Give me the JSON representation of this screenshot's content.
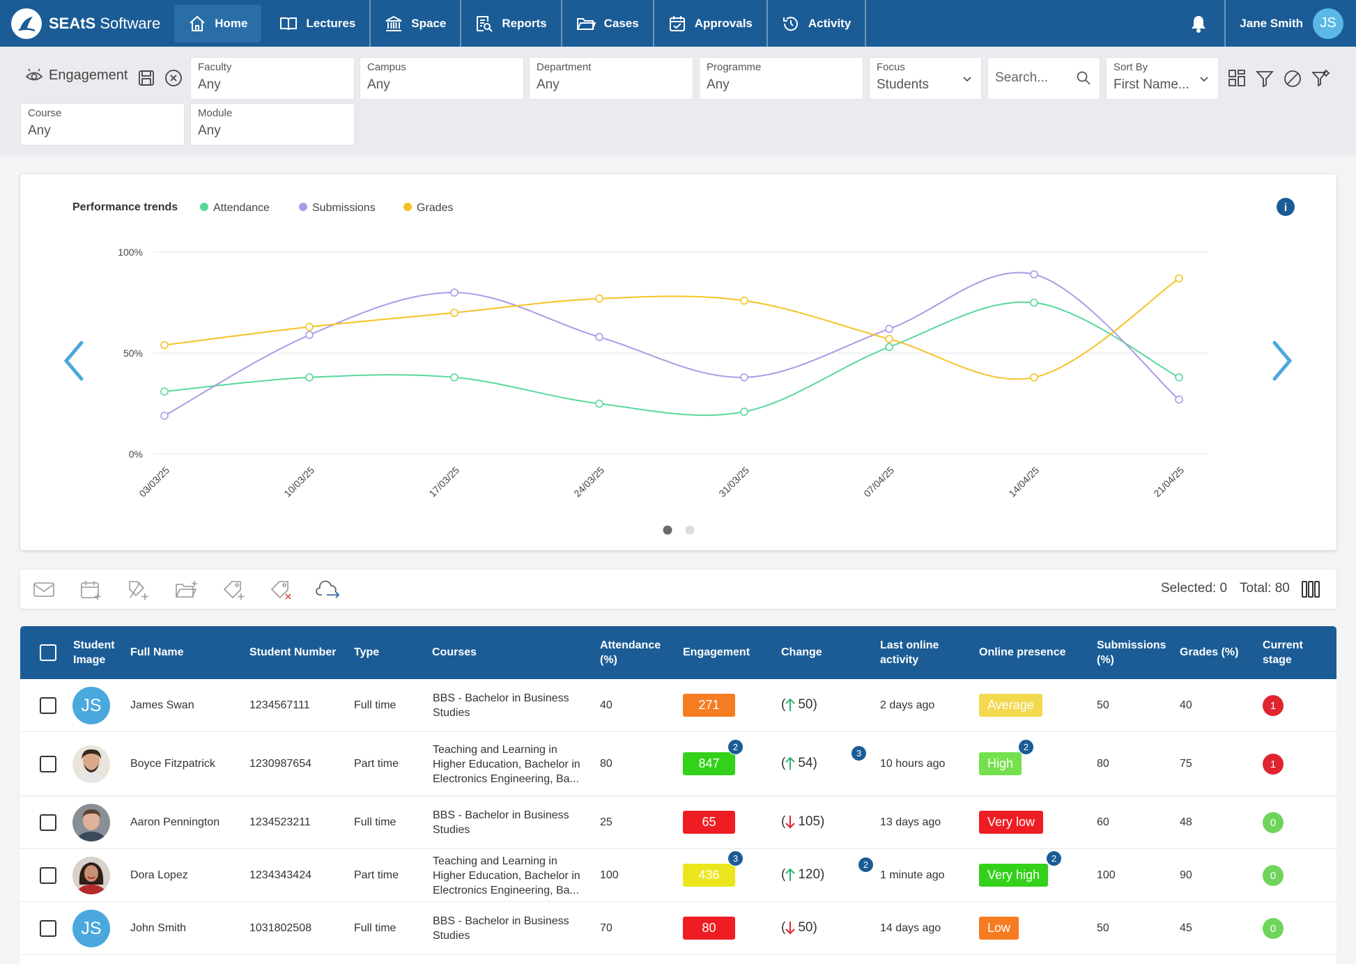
{
  "nav": {
    "brand_strong": "SEAtS",
    "brand_rest": " Software",
    "tabs": [
      {
        "label": "Home"
      },
      {
        "label": "Lectures"
      },
      {
        "label": "Space"
      },
      {
        "label": "Reports"
      },
      {
        "label": "Cases"
      },
      {
        "label": "Approvals"
      },
      {
        "label": "Activity"
      }
    ],
    "user_name": "Jane Smith",
    "user_initials": "JS"
  },
  "filters": {
    "view_label": "Engagement",
    "faculty": {
      "label": "Faculty",
      "value": "Any"
    },
    "campus": {
      "label": "Campus",
      "value": "Any"
    },
    "department": {
      "label": "Department",
      "value": "Any"
    },
    "programme": {
      "label": "Programme",
      "value": "Any"
    },
    "focus": {
      "label": "Focus",
      "value": "Students"
    },
    "search": {
      "placeholder": "Search..."
    },
    "sort": {
      "label": "Sort By",
      "value": "First Name..."
    },
    "course": {
      "label": "Course",
      "value": "Any"
    },
    "module": {
      "label": "Module",
      "value": "Any"
    }
  },
  "chart_data": {
    "type": "line",
    "title": "Performance trends",
    "x": [
      "03/03/25",
      "10/03/25",
      "17/03/25",
      "24/03/25",
      "31/03/25",
      "07/04/25",
      "14/04/25",
      "21/04/25"
    ],
    "ylim": [
      0,
      100
    ],
    "yticks": [
      "0%",
      "50%",
      "100%"
    ],
    "grid": true,
    "legend": "top-left",
    "series": [
      {
        "name": "Attendance",
        "color": "#58d89b",
        "values": [
          31,
          38,
          38,
          25,
          21,
          53,
          75,
          38
        ]
      },
      {
        "name": "Submissions",
        "color": "#a99be6",
        "values": [
          19,
          59,
          80,
          58,
          38,
          62,
          89,
          27
        ]
      },
      {
        "name": "Grades",
        "color": "#f5c226",
        "values": [
          54,
          63,
          70,
          77,
          76,
          57,
          38,
          87
        ]
      }
    ]
  },
  "actions": {
    "selected": "Selected: 0",
    "total": "Total: 80"
  },
  "table": {
    "headers": {
      "image": [
        "Student",
        "Image"
      ],
      "name": "Full Name",
      "number": "Student Number",
      "type": "Type",
      "courses": "Courses",
      "attendance": [
        "Attendance",
        "(%)"
      ],
      "engagement": "Engagement",
      "change": "Change",
      "last": [
        "Last online",
        "activity"
      ],
      "presence": "Online presence",
      "submissions": [
        "Submissions",
        "(%)"
      ],
      "grades": "Grades (%)",
      "stage": [
        "Current",
        "stage"
      ]
    },
    "rows": [
      {
        "initials": "JS",
        "name": "James Swan",
        "number": "1234567111",
        "type": "Full time",
        "courses": "BBS - Bachelor in Business Studies",
        "attendance": "40",
        "engagement": "271",
        "eng_color": "#f57c21",
        "eng_badge": "",
        "change_dir": "up",
        "change": "50",
        "change_badge": "",
        "last": "2 days ago",
        "presence": "Average",
        "pres_color": "#f2d94e",
        "pres_badge": "",
        "submissions": "50",
        "grades": "40",
        "stage": "1",
        "stage_color": "#e0242f"
      },
      {
        "initials": "",
        "name": "Boyce Fitzpatrick",
        "number": "1230987654",
        "type": "Part time",
        "courses": "Teaching and Learning in Higher Education, Bachelor in Electronics Engineering, Ba...",
        "attendance": "80",
        "engagement": "847",
        "eng_color": "#33d11a",
        "eng_badge": "2",
        "change_dir": "up",
        "change": "54",
        "change_badge": "3",
        "last": "10 hours ago",
        "presence": "High",
        "pres_color": "#74e04d",
        "pres_badge": "2",
        "submissions": "80",
        "grades": "75",
        "stage": "1",
        "stage_color": "#e0242f"
      },
      {
        "initials": "",
        "name": "Aaron Pennington",
        "number": "1234523211",
        "type": "Full time",
        "courses": "BBS - Bachelor in Business Studies",
        "attendance": "25",
        "engagement": "65",
        "eng_color": "#ee1d24",
        "eng_badge": "",
        "change_dir": "down",
        "change": "105",
        "change_badge": "",
        "last": "13 days ago",
        "presence": "Very low",
        "pres_color": "#ee1d24",
        "pres_badge": "",
        "submissions": "60",
        "grades": "48",
        "stage": "0",
        "stage_color": "#6fd45c"
      },
      {
        "initials": "",
        "name": "Dora Lopez",
        "number": "1234343424",
        "type": "Part time",
        "courses": "Teaching and Learning in Higher Education, Bachelor in Electronics Engineering, Ba...",
        "attendance": "100",
        "engagement": "436",
        "eng_color": "#ebe51e",
        "eng_badge": "3",
        "change_dir": "up",
        "change": "120",
        "change_badge": "2",
        "last": "1 minute ago",
        "presence": "Very high",
        "pres_color": "#33d11a",
        "pres_badge": "2",
        "submissions": "100",
        "grades": "90",
        "stage": "0",
        "stage_color": "#6fd45c"
      },
      {
        "initials": "JS",
        "name": "John Smith",
        "number": "1031802508",
        "type": "Full time",
        "courses": "BBS - Bachelor in Business Studies",
        "attendance": "70",
        "engagement": "80",
        "eng_color": "#ee1d24",
        "eng_badge": "",
        "change_dir": "down",
        "change": "50",
        "change_badge": "",
        "last": "14 days ago",
        "presence": "Low",
        "pres_color": "#f57c21",
        "pres_badge": "",
        "submissions": "50",
        "grades": "45",
        "stage": "0",
        "stage_color": "#6fd45c"
      }
    ]
  }
}
